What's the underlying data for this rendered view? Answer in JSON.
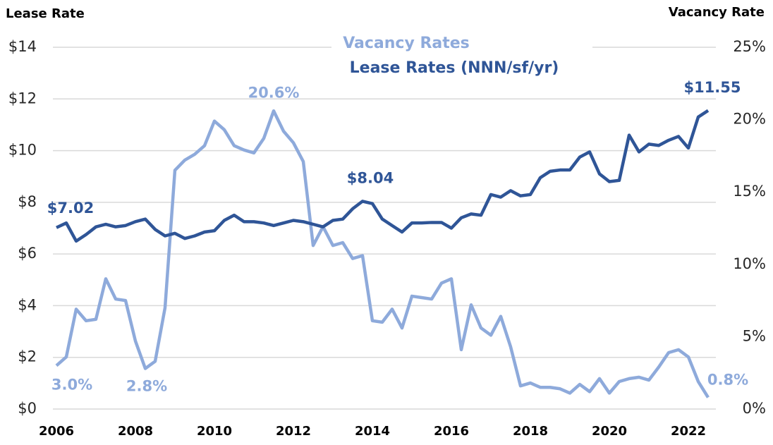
{
  "chart_data": {
    "type": "line",
    "y_axis_label": "Lease Rate",
    "y2_axis_label": "Vacancy Rate",
    "x": [
      2006,
      2006.25,
      2006.5,
      2006.75,
      2007,
      2007.25,
      2007.5,
      2007.75,
      2008,
      2008.25,
      2008.5,
      2008.75,
      2009,
      2009.25,
      2009.5,
      2009.75,
      2010,
      2010.25,
      2010.5,
      2010.75,
      2011,
      2011.25,
      2011.5,
      2011.75,
      2012,
      2012.25,
      2012.5,
      2012.75,
      2013,
      2013.25,
      2013.5,
      2013.75,
      2014,
      2014.25,
      2014.5,
      2014.75,
      2015,
      2015.25,
      2015.5,
      2015.75,
      2016,
      2016.25,
      2016.5,
      2016.75,
      2017,
      2017.25,
      2017.5,
      2017.75,
      2018,
      2018.25,
      2018.5,
      2018.75,
      2019,
      2019.25,
      2019.5,
      2019.75,
      2020,
      2020.25,
      2020.5,
      2020.75,
      2021,
      2021.25,
      2021.5,
      2021.75,
      2022,
      2022.25,
      2022.5
    ],
    "xlim": [
      2006,
      2023
    ],
    "xticks": [
      2006,
      2008,
      2010,
      2012,
      2014,
      2016,
      2018,
      2020,
      2022
    ],
    "ylim": [
      0,
      14
    ],
    "yticks": [
      {
        "value": 0,
        "label": "$0"
      },
      {
        "value": 2,
        "label": "$2"
      },
      {
        "value": 4,
        "label": "$4"
      },
      {
        "value": 6,
        "label": "$6"
      },
      {
        "value": 8,
        "label": "$8"
      },
      {
        "value": 10,
        "label": "$10"
      },
      {
        "value": 12,
        "label": "$12"
      },
      {
        "value": 14,
        "label": "$14"
      }
    ],
    "y2lim": [
      0,
      25
    ],
    "y2ticks": [
      {
        "value": 0,
        "label": "0%"
      },
      {
        "value": 5,
        "label": "5%"
      },
      {
        "value": 10,
        "label": "10%"
      },
      {
        "value": 15,
        "label": "15%"
      },
      {
        "value": 20,
        "label": "20%"
      },
      {
        "value": 25,
        "label": "25%"
      }
    ],
    "grid": true,
    "series": [
      {
        "name": "Vacancy Rates",
        "color": "#8eaadb",
        "axis": "y2",
        "values": [
          3.0,
          3.6,
          6.9,
          6.1,
          6.2,
          9.0,
          7.6,
          7.5,
          4.7,
          2.8,
          3.3,
          7.0,
          16.5,
          17.2,
          17.6,
          18.2,
          19.9,
          19.3,
          18.2,
          17.9,
          17.7,
          18.7,
          20.6,
          19.2,
          18.4,
          17.1,
          11.3,
          12.6,
          11.3,
          11.5,
          10.4,
          10.6,
          6.1,
          6.0,
          6.9,
          5.6,
          7.8,
          7.7,
          7.6,
          8.7,
          9.0,
          4.1,
          7.2,
          5.6,
          5.1,
          6.4,
          4.3,
          1.6,
          1.8,
          1.5,
          1.5,
          1.4,
          1.1,
          1.7,
          1.2,
          2.1,
          1.1,
          1.9,
          2.1,
          2.2,
          2.0,
          2.9,
          3.9,
          4.1,
          3.6,
          1.9,
          0.8
        ],
        "value_labels": [
          "3.0%",
          null,
          null,
          null,
          null,
          null,
          null,
          null,
          null,
          "2.8%",
          null,
          null,
          null,
          null,
          null,
          null,
          null,
          null,
          null,
          null,
          null,
          null,
          "20.6%",
          null,
          null,
          null,
          null,
          null,
          null,
          null,
          null,
          null,
          null,
          null,
          null,
          null,
          null,
          null,
          null,
          null,
          null,
          null,
          null,
          null,
          null,
          null,
          null,
          null,
          null,
          null,
          null,
          null,
          null,
          null,
          null,
          null,
          null,
          null,
          null,
          null,
          null,
          null,
          null,
          null,
          null,
          null,
          "0.8%"
        ]
      },
      {
        "name": "Lease Rates (NNN/sf/yr)",
        "color": "#2f5597",
        "axis": "y",
        "values": [
          7.02,
          7.2,
          6.5,
          6.75,
          7.05,
          7.15,
          7.05,
          7.1,
          7.25,
          7.35,
          6.95,
          6.7,
          6.8,
          6.6,
          6.7,
          6.85,
          6.9,
          7.3,
          7.5,
          7.25,
          7.25,
          7.2,
          7.1,
          7.2,
          7.3,
          7.25,
          7.15,
          7.05,
          7.3,
          7.35,
          7.75,
          8.04,
          7.95,
          7.35,
          7.1,
          6.85,
          7.2,
          7.2,
          7.22,
          7.22,
          7.0,
          7.4,
          7.55,
          7.5,
          8.3,
          8.2,
          8.45,
          8.25,
          8.3,
          8.95,
          9.2,
          9.25,
          9.25,
          9.75,
          9.95,
          9.1,
          8.8,
          8.85,
          10.6,
          9.95,
          10.25,
          10.2,
          10.4,
          10.55,
          10.1,
          11.3,
          11.55
        ],
        "value_labels": [
          "$7.02",
          null,
          null,
          null,
          null,
          null,
          null,
          null,
          null,
          null,
          null,
          null,
          null,
          null,
          null,
          null,
          null,
          null,
          null,
          null,
          null,
          null,
          null,
          null,
          null,
          null,
          null,
          null,
          null,
          null,
          null,
          "$8.04",
          null,
          null,
          null,
          null,
          null,
          null,
          null,
          null,
          null,
          null,
          null,
          null,
          null,
          null,
          null,
          null,
          null,
          null,
          null,
          null,
          null,
          null,
          null,
          null,
          null,
          null,
          null,
          null,
          null,
          null,
          null,
          null,
          null,
          null,
          "$11.55"
        ]
      }
    ]
  }
}
